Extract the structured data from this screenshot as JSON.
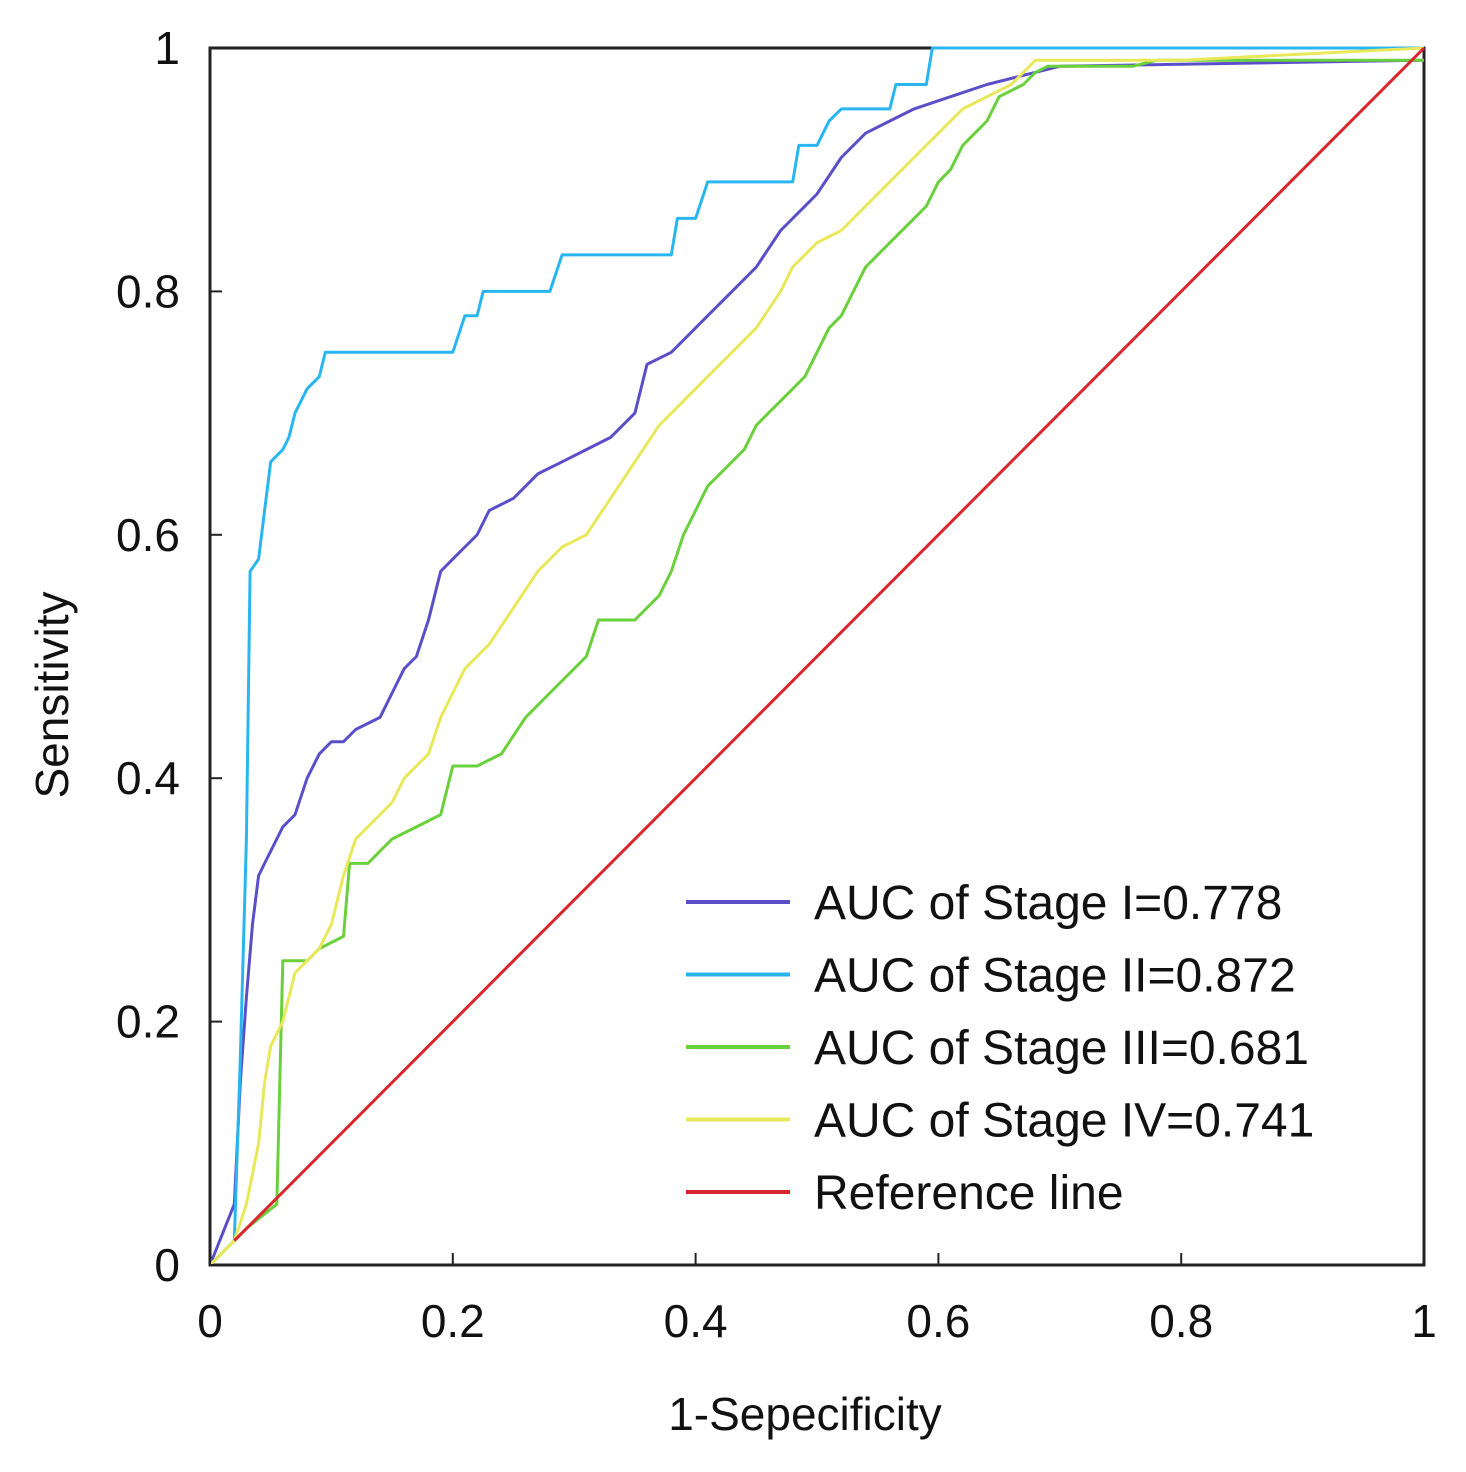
{
  "chart_data": {
    "type": "line",
    "title": "",
    "xlabel": "1-Sepecificity",
    "ylabel": "Sensitivity",
    "xlim": [
      0,
      1
    ],
    "ylim": [
      0,
      1
    ],
    "xticks": [
      {
        "value": 0,
        "label": "0"
      },
      {
        "value": 0.2,
        "label": "0.2"
      },
      {
        "value": 0.4,
        "label": "0.4"
      },
      {
        "value": 0.6,
        "label": "0.6"
      },
      {
        "value": 0.8,
        "label": "0.8"
      },
      {
        "value": 1,
        "label": "1"
      }
    ],
    "yticks": [
      {
        "value": 0,
        "label": "0"
      },
      {
        "value": 0.2,
        "label": "0.2"
      },
      {
        "value": 0.4,
        "label": "0.4"
      },
      {
        "value": 0.6,
        "label": "0.6"
      },
      {
        "value": 0.8,
        "label": "0.8"
      },
      {
        "value": 1,
        "label": "1"
      }
    ],
    "grid": false,
    "legend_position": "bottom-right",
    "series": [
      {
        "name": "AUC of Stage I=0.778",
        "color": "#5a4fc8",
        "points": [
          [
            0,
            0
          ],
          [
            0.02,
            0.05
          ],
          [
            0.025,
            0.15
          ],
          [
            0.03,
            0.22
          ],
          [
            0.035,
            0.28
          ],
          [
            0.04,
            0.32
          ],
          [
            0.045,
            0.33
          ],
          [
            0.05,
            0.34
          ],
          [
            0.055,
            0.35
          ],
          [
            0.06,
            0.36
          ],
          [
            0.07,
            0.37
          ],
          [
            0.08,
            0.4
          ],
          [
            0.09,
            0.42
          ],
          [
            0.1,
            0.43
          ],
          [
            0.11,
            0.43
          ],
          [
            0.12,
            0.44
          ],
          [
            0.14,
            0.45
          ],
          [
            0.15,
            0.47
          ],
          [
            0.16,
            0.49
          ],
          [
            0.17,
            0.5
          ],
          [
            0.18,
            0.53
          ],
          [
            0.19,
            0.57
          ],
          [
            0.2,
            0.58
          ],
          [
            0.21,
            0.59
          ],
          [
            0.22,
            0.6
          ],
          [
            0.23,
            0.62
          ],
          [
            0.25,
            0.63
          ],
          [
            0.27,
            0.65
          ],
          [
            0.29,
            0.66
          ],
          [
            0.31,
            0.67
          ],
          [
            0.33,
            0.68
          ],
          [
            0.35,
            0.7
          ],
          [
            0.36,
            0.74
          ],
          [
            0.38,
            0.75
          ],
          [
            0.4,
            0.77
          ],
          [
            0.41,
            0.78
          ],
          [
            0.43,
            0.8
          ],
          [
            0.45,
            0.82
          ],
          [
            0.47,
            0.85
          ],
          [
            0.49,
            0.87
          ],
          [
            0.5,
            0.88
          ],
          [
            0.52,
            0.91
          ],
          [
            0.54,
            0.93
          ],
          [
            0.56,
            0.94
          ],
          [
            0.58,
            0.95
          ],
          [
            0.61,
            0.96
          ],
          [
            0.64,
            0.97
          ],
          [
            0.68,
            0.98
          ],
          [
            0.7,
            0.985
          ],
          [
            1.0,
            0.99
          ]
        ]
      },
      {
        "name": "AUC of Stage II=0.872",
        "color": "#29b6f0",
        "points": [
          [
            0,
            0
          ],
          [
            0.02,
            0.02
          ],
          [
            0.025,
            0.17
          ],
          [
            0.03,
            0.35
          ],
          [
            0.033,
            0.57
          ],
          [
            0.04,
            0.58
          ],
          [
            0.045,
            0.62
          ],
          [
            0.05,
            0.66
          ],
          [
            0.06,
            0.67
          ],
          [
            0.065,
            0.68
          ],
          [
            0.07,
            0.7
          ],
          [
            0.08,
            0.72
          ],
          [
            0.09,
            0.73
          ],
          [
            0.095,
            0.75
          ],
          [
            0.11,
            0.75
          ],
          [
            0.2,
            0.75
          ],
          [
            0.21,
            0.78
          ],
          [
            0.22,
            0.78
          ],
          [
            0.225,
            0.8
          ],
          [
            0.26,
            0.8
          ],
          [
            0.28,
            0.8
          ],
          [
            0.29,
            0.83
          ],
          [
            0.32,
            0.83
          ],
          [
            0.38,
            0.83
          ],
          [
            0.385,
            0.86
          ],
          [
            0.4,
            0.86
          ],
          [
            0.41,
            0.89
          ],
          [
            0.44,
            0.89
          ],
          [
            0.48,
            0.89
          ],
          [
            0.485,
            0.92
          ],
          [
            0.5,
            0.92
          ],
          [
            0.51,
            0.94
          ],
          [
            0.52,
            0.95
          ],
          [
            0.56,
            0.95
          ],
          [
            0.565,
            0.97
          ],
          [
            0.59,
            0.97
          ],
          [
            0.595,
            1.0
          ],
          [
            1.0,
            1.0
          ]
        ]
      },
      {
        "name": "AUC of Stage III=0.681",
        "color": "#6ad03c",
        "points": [
          [
            0,
            0
          ],
          [
            0.02,
            0.02
          ],
          [
            0.03,
            0.03
          ],
          [
            0.055,
            0.05
          ],
          [
            0.06,
            0.25
          ],
          [
            0.08,
            0.25
          ],
          [
            0.09,
            0.26
          ],
          [
            0.11,
            0.27
          ],
          [
            0.115,
            0.33
          ],
          [
            0.13,
            0.33
          ],
          [
            0.15,
            0.35
          ],
          [
            0.17,
            0.36
          ],
          [
            0.19,
            0.37
          ],
          [
            0.2,
            0.41
          ],
          [
            0.22,
            0.41
          ],
          [
            0.24,
            0.42
          ],
          [
            0.26,
            0.45
          ],
          [
            0.28,
            0.47
          ],
          [
            0.3,
            0.49
          ],
          [
            0.31,
            0.5
          ],
          [
            0.32,
            0.53
          ],
          [
            0.34,
            0.53
          ],
          [
            0.35,
            0.53
          ],
          [
            0.37,
            0.55
          ],
          [
            0.38,
            0.57
          ],
          [
            0.39,
            0.6
          ],
          [
            0.4,
            0.62
          ],
          [
            0.41,
            0.64
          ],
          [
            0.42,
            0.65
          ],
          [
            0.44,
            0.67
          ],
          [
            0.45,
            0.69
          ],
          [
            0.46,
            0.7
          ],
          [
            0.47,
            0.71
          ],
          [
            0.49,
            0.73
          ],
          [
            0.5,
            0.75
          ],
          [
            0.51,
            0.77
          ],
          [
            0.52,
            0.78
          ],
          [
            0.53,
            0.8
          ],
          [
            0.54,
            0.82
          ],
          [
            0.56,
            0.84
          ],
          [
            0.58,
            0.86
          ],
          [
            0.59,
            0.87
          ],
          [
            0.6,
            0.89
          ],
          [
            0.61,
            0.9
          ],
          [
            0.62,
            0.92
          ],
          [
            0.63,
            0.93
          ],
          [
            0.64,
            0.94
          ],
          [
            0.65,
            0.96
          ],
          [
            0.67,
            0.97
          ],
          [
            0.68,
            0.98
          ],
          [
            0.69,
            0.985
          ],
          [
            0.76,
            0.985
          ],
          [
            0.78,
            0.99
          ],
          [
            1.0,
            0.99
          ]
        ]
      },
      {
        "name": "AUC of Stage IV=0.741",
        "color": "#e8e85a",
        "points": [
          [
            0,
            0
          ],
          [
            0.02,
            0.02
          ],
          [
            0.03,
            0.05
          ],
          [
            0.04,
            0.1
          ],
          [
            0.045,
            0.15
          ],
          [
            0.05,
            0.18
          ],
          [
            0.06,
            0.2
          ],
          [
            0.07,
            0.24
          ],
          [
            0.08,
            0.25
          ],
          [
            0.09,
            0.26
          ],
          [
            0.1,
            0.28
          ],
          [
            0.11,
            0.32
          ],
          [
            0.12,
            0.35
          ],
          [
            0.13,
            0.36
          ],
          [
            0.15,
            0.38
          ],
          [
            0.16,
            0.4
          ],
          [
            0.18,
            0.42
          ],
          [
            0.19,
            0.45
          ],
          [
            0.2,
            0.47
          ],
          [
            0.21,
            0.49
          ],
          [
            0.23,
            0.51
          ],
          [
            0.25,
            0.54
          ],
          [
            0.27,
            0.57
          ],
          [
            0.29,
            0.59
          ],
          [
            0.31,
            0.6
          ],
          [
            0.33,
            0.63
          ],
          [
            0.35,
            0.66
          ],
          [
            0.37,
            0.69
          ],
          [
            0.39,
            0.71
          ],
          [
            0.41,
            0.73
          ],
          [
            0.43,
            0.75
          ],
          [
            0.45,
            0.77
          ],
          [
            0.47,
            0.8
          ],
          [
            0.48,
            0.82
          ],
          [
            0.5,
            0.84
          ],
          [
            0.52,
            0.85
          ],
          [
            0.54,
            0.87
          ],
          [
            0.56,
            0.89
          ],
          [
            0.58,
            0.91
          ],
          [
            0.6,
            0.93
          ],
          [
            0.62,
            0.95
          ],
          [
            0.64,
            0.96
          ],
          [
            0.66,
            0.97
          ],
          [
            0.68,
            0.99
          ],
          [
            0.7,
            0.99
          ],
          [
            0.8,
            0.99
          ],
          [
            1.0,
            1.0
          ]
        ]
      },
      {
        "name": "Reference line",
        "color": "#d9262d",
        "points": [
          [
            0.02,
            0.02
          ],
          [
            1.0,
            1.0
          ]
        ]
      }
    ]
  }
}
